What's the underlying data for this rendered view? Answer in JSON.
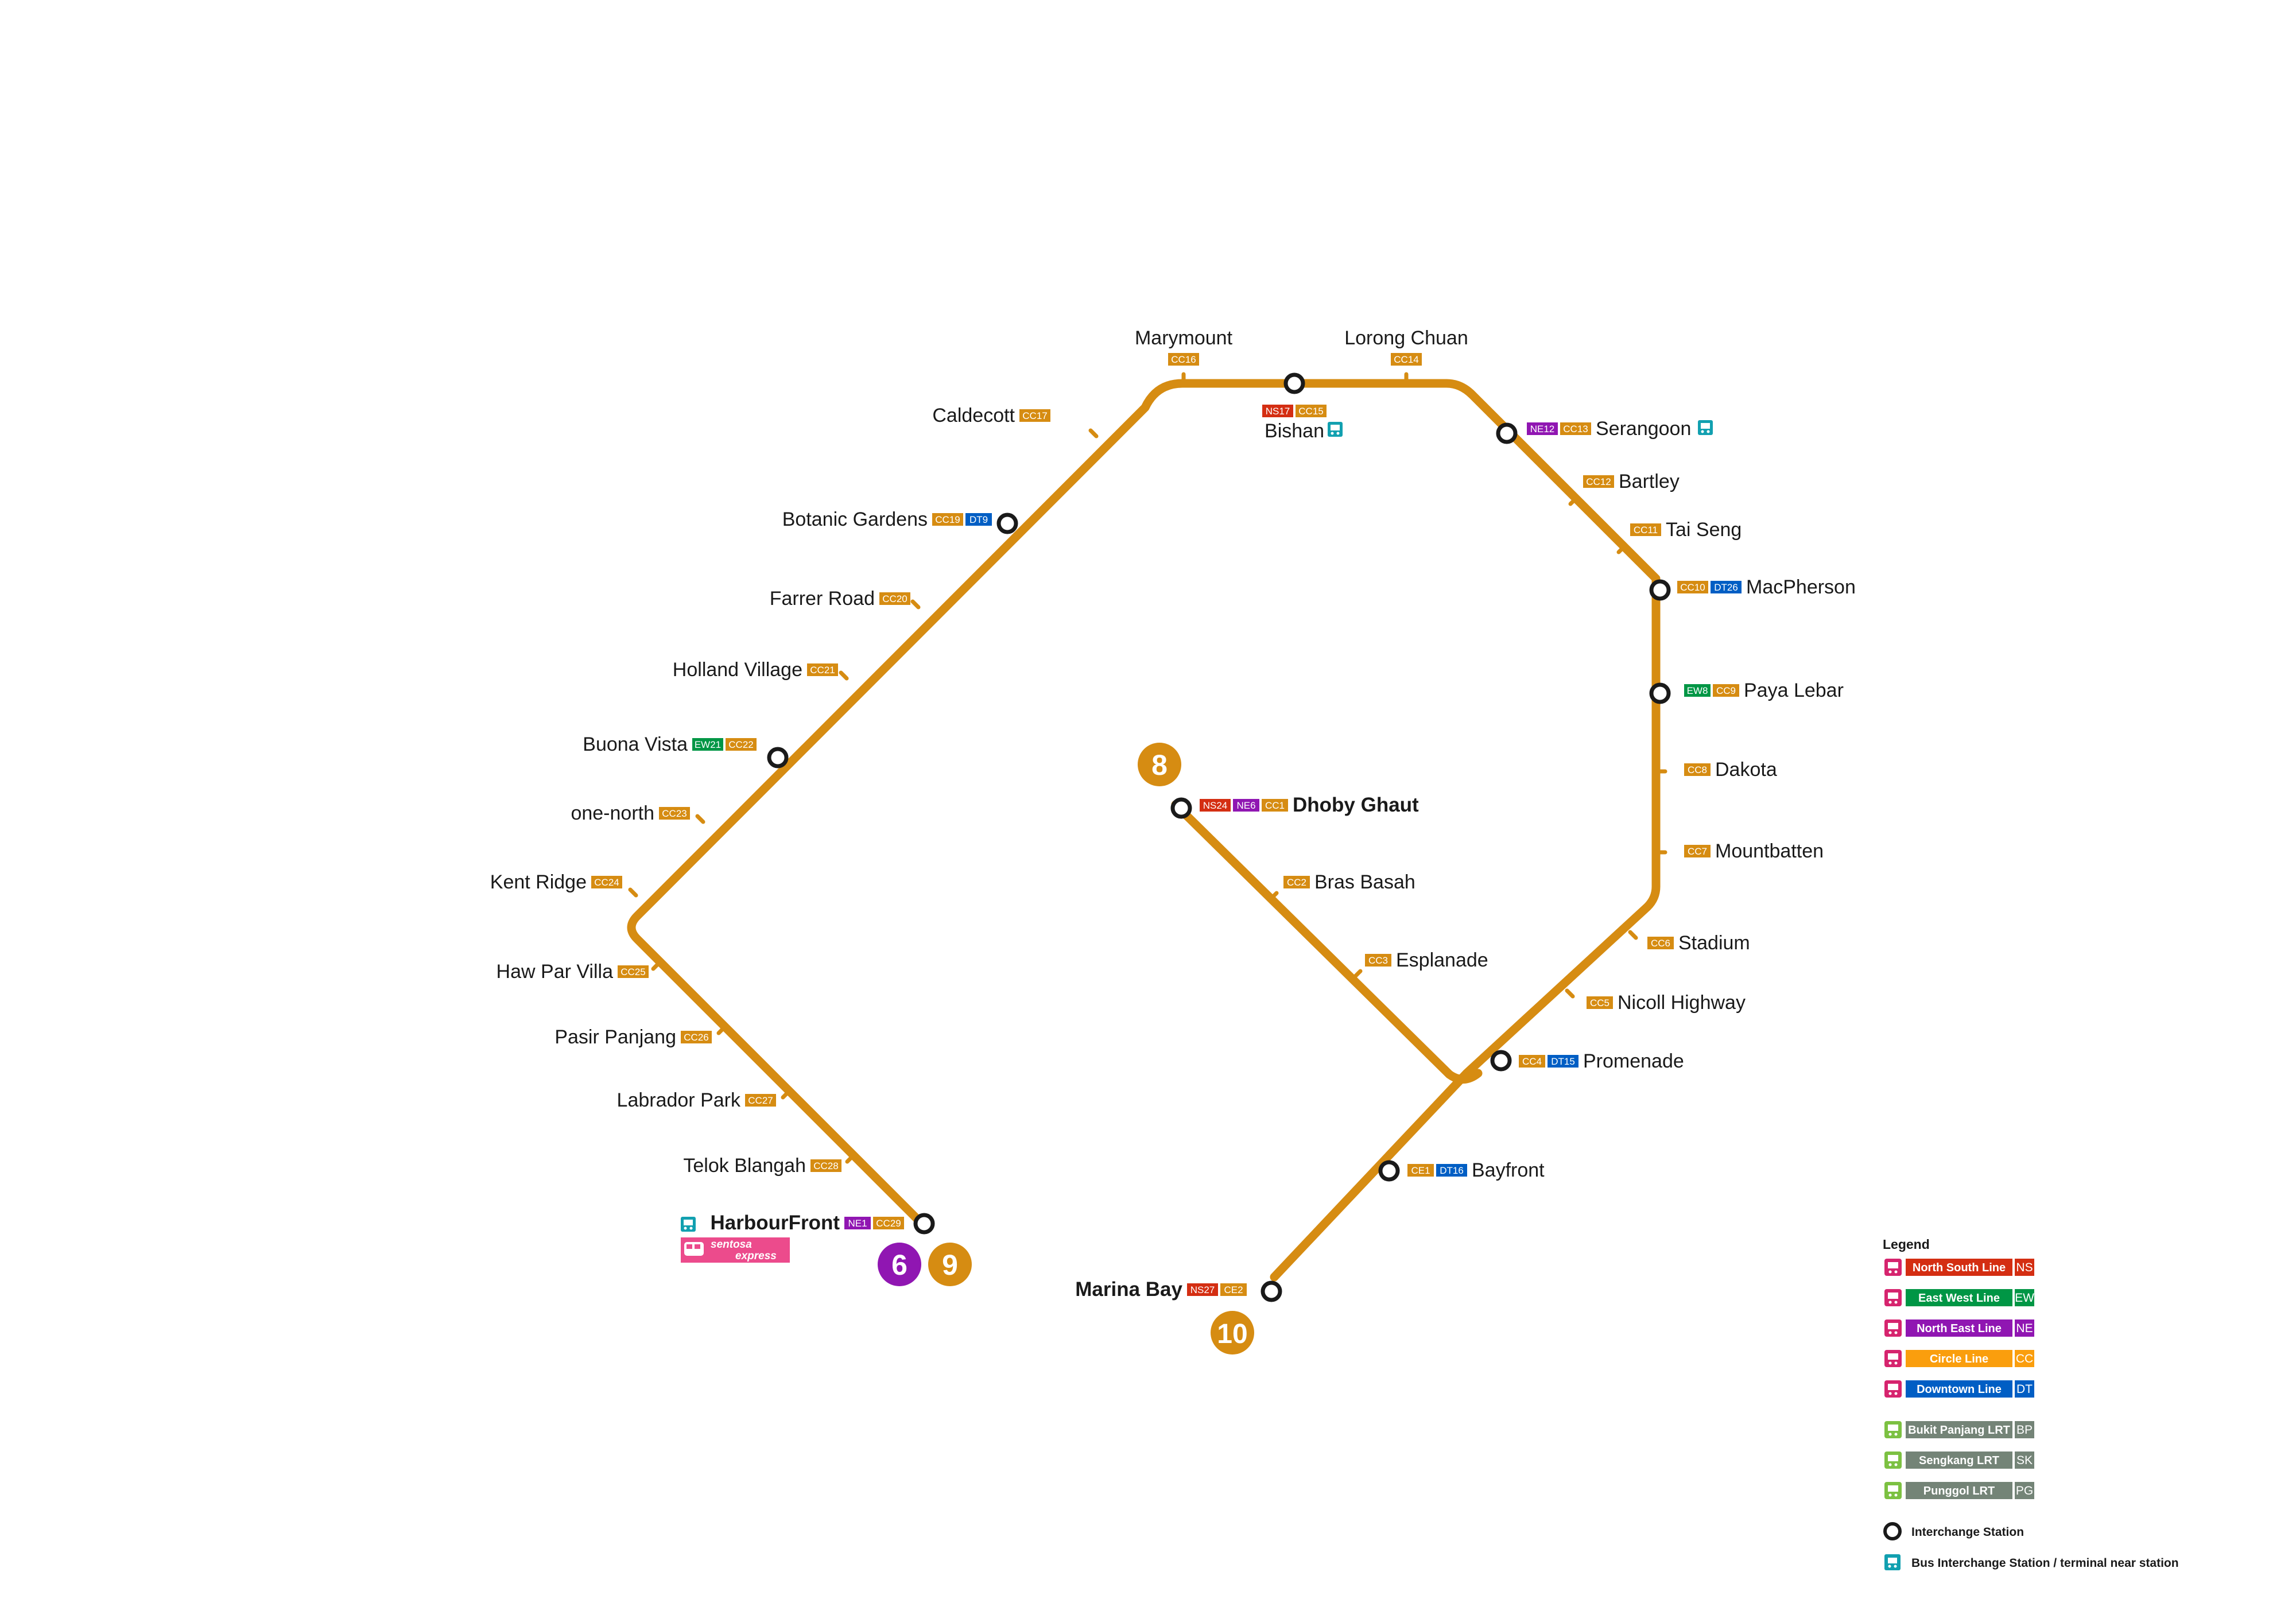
{
  "colors": {
    "circle_line": "#D68C12",
    "ns": "#D42E12",
    "ew": "#009645",
    "ne": "#9016B2",
    "cc": "#FA9E0D",
    "dt": "#005EC4",
    "lrt": "#748477",
    "bus": "#12A0B0",
    "sentosa": "#EC4B8C"
  },
  "stations": [
    {
      "id": "marymount",
      "name": "Marymount",
      "codes": [
        "CC16"
      ]
    },
    {
      "id": "lorong-chuan",
      "name": "Lorong Chuan",
      "codes": [
        "CC14"
      ]
    },
    {
      "id": "caldecott",
      "name": "Caldecott",
      "codes": [
        "CC17"
      ]
    },
    {
      "id": "bishan",
      "name": "Bishan",
      "codes": [
        "NS17",
        "CC15"
      ]
    },
    {
      "id": "serangoon",
      "name": "Serangoon",
      "codes": [
        "NE12",
        "CC13"
      ]
    },
    {
      "id": "bartley",
      "name": "Bartley",
      "codes": [
        "CC12"
      ]
    },
    {
      "id": "tai-seng",
      "name": "Tai Seng",
      "codes": [
        "CC11"
      ]
    },
    {
      "id": "botanic-gardens",
      "name": "Botanic Gardens",
      "codes": [
        "CC19",
        "DT9"
      ]
    },
    {
      "id": "macpherson",
      "name": "MacPherson",
      "codes": [
        "CC10",
        "DT26"
      ]
    },
    {
      "id": "farrer-road",
      "name": "Farrer Road",
      "codes": [
        "CC20"
      ]
    },
    {
      "id": "holland-village",
      "name": "Holland Village",
      "codes": [
        "CC21"
      ]
    },
    {
      "id": "paya-lebar",
      "name": "Paya Lebar",
      "codes": [
        "EW8",
        "CC9"
      ]
    },
    {
      "id": "buona-vista",
      "name": "Buona Vista",
      "codes": [
        "EW21",
        "CC22"
      ]
    },
    {
      "id": "dakota",
      "name": "Dakota",
      "codes": [
        "CC8"
      ]
    },
    {
      "id": "dhoby-ghaut",
      "name": "Dhoby Ghaut",
      "codes": [
        "NS24",
        "NE6",
        "CC1"
      ]
    },
    {
      "id": "one-north",
      "name": "one-north",
      "codes": [
        "CC23"
      ]
    },
    {
      "id": "mountbatten",
      "name": "Mountbatten",
      "codes": [
        "CC7"
      ]
    },
    {
      "id": "bras-basah",
      "name": "Bras Basah",
      "codes": [
        "CC2"
      ]
    },
    {
      "id": "kent-ridge",
      "name": "Kent Ridge",
      "codes": [
        "CC24"
      ]
    },
    {
      "id": "stadium",
      "name": "Stadium",
      "codes": [
        "CC6"
      ]
    },
    {
      "id": "esplanade",
      "name": "Esplanade",
      "codes": [
        "CC3"
      ]
    },
    {
      "id": "haw-par-villa",
      "name": "Haw Par Villa",
      "codes": [
        "CC25"
      ]
    },
    {
      "id": "nicoll-highway",
      "name": "Nicoll Highway",
      "codes": [
        "CC5"
      ]
    },
    {
      "id": "pasir-panjang",
      "name": "Pasir  Panjang",
      "codes": [
        "CC26"
      ]
    },
    {
      "id": "promenade",
      "name": "Promenade",
      "codes": [
        "CC4",
        "DT15"
      ]
    },
    {
      "id": "labrador-park",
      "name": "Labrador Park",
      "codes": [
        "CC27"
      ]
    },
    {
      "id": "telok-blangah",
      "name": "Telok Blangah",
      "codes": [
        "CC28"
      ]
    },
    {
      "id": "bayfront",
      "name": "Bayfront",
      "codes": [
        "CE1",
        "DT16"
      ]
    },
    {
      "id": "harbourfront",
      "name": "HarbourFront",
      "codes": [
        "NE1",
        "CC29"
      ]
    },
    {
      "id": "marina-bay",
      "name": "Marina Bay",
      "codes": [
        "NS27",
        "CE2"
      ]
    }
  ],
  "markers": [
    "8",
    "6",
    "9",
    "10"
  ],
  "sentosa_express": {
    "line1": "sentosa",
    "line2": "express"
  },
  "legend": {
    "title": "Legend",
    "lines": [
      {
        "name": "North South Line",
        "code": "NS"
      },
      {
        "name": "East West Line",
        "code": "EW"
      },
      {
        "name": "North East Line",
        "code": "NE"
      },
      {
        "name": "Circle Line",
        "code": "CC"
      },
      {
        "name": "Downtown Line",
        "code": "DT"
      }
    ],
    "lrt": [
      {
        "name": "Bukit Panjang LRT",
        "code": "BP"
      },
      {
        "name": "Sengkang LRT",
        "code": "SK"
      },
      {
        "name": "Punggol LRT",
        "code": "PG"
      }
    ],
    "interchange_label": "Interchange Station",
    "bus_label": "Bus Interchange Station / terminal near station"
  }
}
